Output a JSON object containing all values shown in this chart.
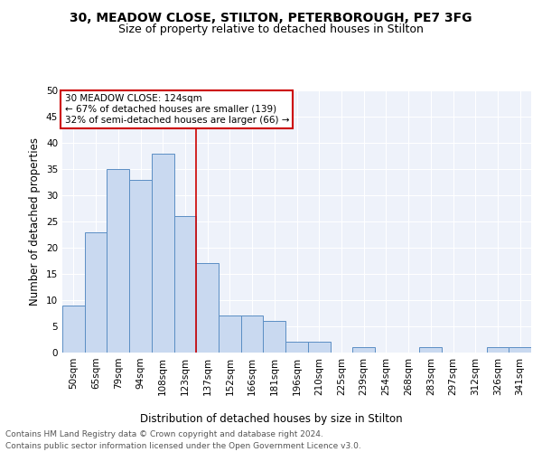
{
  "title1": "30, MEADOW CLOSE, STILTON, PETERBOROUGH, PE7 3FG",
  "title2": "Size of property relative to detached houses in Stilton",
  "xlabel": "Distribution of detached houses by size in Stilton",
  "ylabel": "Number of detached properties",
  "categories": [
    "50sqm",
    "65sqm",
    "79sqm",
    "94sqm",
    "108sqm",
    "123sqm",
    "137sqm",
    "152sqm",
    "166sqm",
    "181sqm",
    "196sqm",
    "210sqm",
    "225sqm",
    "239sqm",
    "254sqm",
    "268sqm",
    "283sqm",
    "297sqm",
    "312sqm",
    "326sqm",
    "341sqm"
  ],
  "values": [
    9,
    23,
    35,
    33,
    38,
    26,
    17,
    7,
    7,
    6,
    2,
    2,
    0,
    1,
    0,
    0,
    1,
    0,
    0,
    1,
    1
  ],
  "bar_color": "#c9d9f0",
  "bar_edge_color": "#5b8ec4",
  "annotation_title": "30 MEADOW CLOSE: 124sqm",
  "annotation_line1": "← 67% of detached houses are smaller (139)",
  "annotation_line2": "32% of semi-detached houses are larger (66) →",
  "vline_color": "#cc0000",
  "annotation_box_color": "#cc0000",
  "ylim": [
    0,
    50
  ],
  "yticks": [
    0,
    5,
    10,
    15,
    20,
    25,
    30,
    35,
    40,
    45,
    50
  ],
  "background_color": "#eef2fa",
  "footer1": "Contains HM Land Registry data © Crown copyright and database right 2024.",
  "footer2": "Contains public sector information licensed under the Open Government Licence v3.0.",
  "title1_fontsize": 10,
  "title2_fontsize": 9,
  "axis_fontsize": 8.5,
  "tick_fontsize": 7.5,
  "annotation_fontsize": 7.5,
  "footer_fontsize": 6.5
}
